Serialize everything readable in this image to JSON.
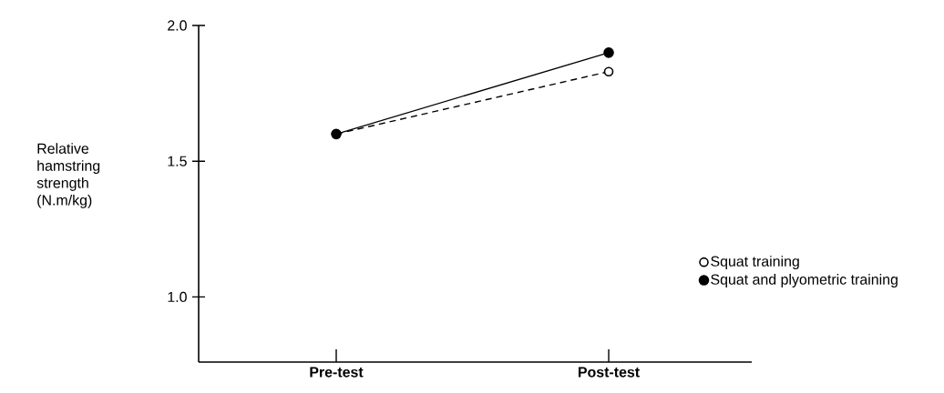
{
  "chart_data": {
    "type": "line",
    "ylabel": "Relative hamstring strength (N.m/kg)",
    "categories": [
      "Pre-test",
      "Post-test"
    ],
    "series": [
      {
        "name": "Squat training",
        "color": "#000000",
        "values": [
          1.6,
          1.83
        ],
        "line_style": "dashed",
        "marker": "circle"
      },
      {
        "name": "Squat and plyometric training",
        "color": "#000000",
        "values": [
          1.6,
          1.9
        ],
        "line_style": "solid",
        "marker": "circle"
      }
    ],
    "ylim": [
      0.76,
      2.0
    ],
    "yticks": [
      {
        "value": 1.0,
        "label": "1.0"
      },
      {
        "value": 1.5,
        "label": "1.5"
      },
      {
        "value": 2.0,
        "label": "2.0"
      }
    ],
    "grid": false,
    "legend": "right"
  }
}
